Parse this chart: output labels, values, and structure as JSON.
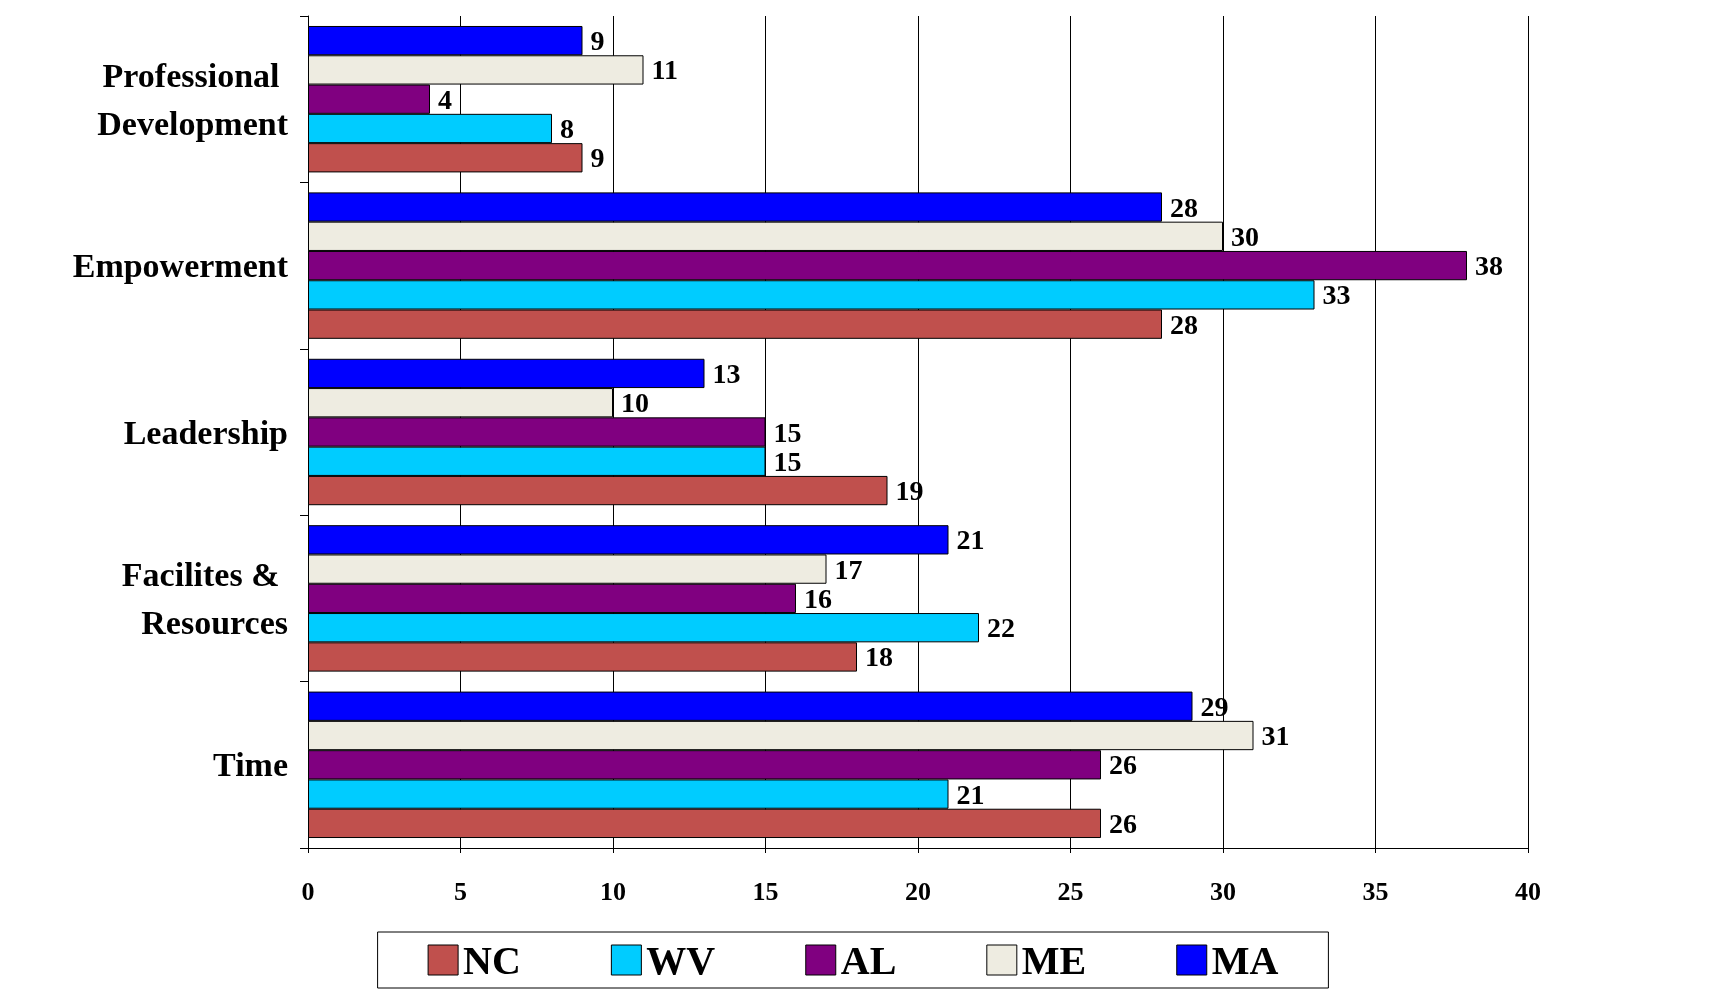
{
  "chart_data": {
    "type": "bar",
    "orientation": "horizontal",
    "categories": [
      "Professional Development",
      "Empowerment",
      "Leadership",
      "Facilites & Resources",
      "Time"
    ],
    "series": [
      {
        "name": "NC",
        "color": "#c0504d",
        "values": [
          9,
          28,
          19,
          18,
          26
        ]
      },
      {
        "name": "WV",
        "color": "#00ccff",
        "values": [
          8,
          33,
          15,
          22,
          21
        ]
      },
      {
        "name": "AL",
        "color": "#800080",
        "values": [
          4,
          38,
          15,
          16,
          26
        ]
      },
      {
        "name": "ME",
        "color": "#eeece1",
        "values": [
          11,
          30,
          10,
          17,
          31
        ]
      },
      {
        "name": "MA",
        "color": "#0000ff",
        "values": [
          9,
          28,
          13,
          21,
          29
        ]
      }
    ],
    "xlim": [
      0,
      40
    ],
    "xticks": [
      0,
      5,
      10,
      15,
      20,
      25,
      30,
      35,
      40
    ],
    "grid": "x",
    "legend": "bottom",
    "data_labels": true
  }
}
